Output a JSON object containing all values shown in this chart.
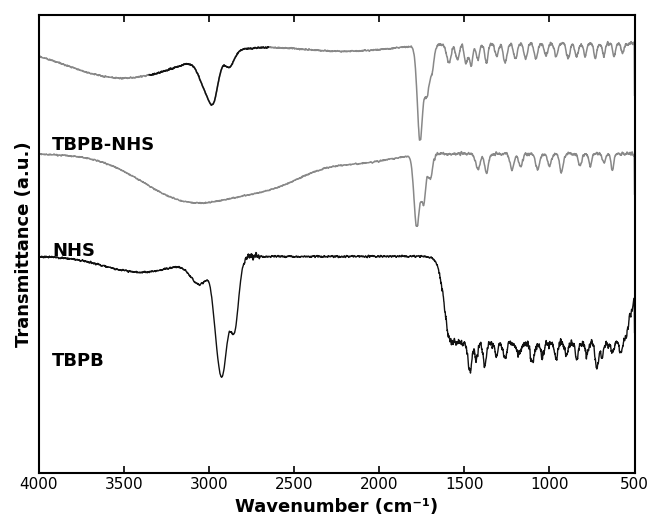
{
  "xlabel": "Wavenumber (cm⁻¹)",
  "ylabel": "Transmittance (a.u.)",
  "tick_labels": [
    "4000",
    "3500",
    "3000",
    "2500",
    "2000",
    "1500",
    "1000",
    "500"
  ],
  "tick_positions": [
    4000,
    3500,
    3000,
    2500,
    2000,
    1500,
    1000,
    500
  ],
  "label_fontsize": 13,
  "tick_fontsize": 11,
  "annotation_fontsize": 13,
  "colors": {
    "black": "#111111",
    "gray": "#888888",
    "background": "#ffffff"
  },
  "offsets": {
    "TBPB": 0.0,
    "NHS": 0.72,
    "TBPB_NHS": 1.35
  }
}
